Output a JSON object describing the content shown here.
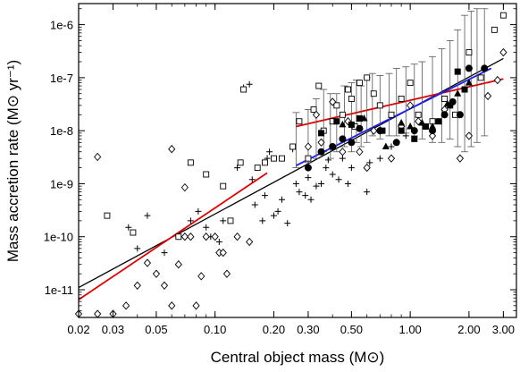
{
  "chart_data": {
    "type": "scatter",
    "title": "",
    "xlabel": "Central object mass (M⊙)",
    "ylabel": "Mass accretion rate (M⊙ yr⁻¹)",
    "x_scale": "log",
    "y_scale": "log",
    "xlim": [
      0.02,
      3.5
    ],
    "ylim": [
      3e-12,
      2.5e-06
    ],
    "x_ticks": [
      {
        "value": 0.02,
        "label": "0.02"
      },
      {
        "value": 0.03,
        "label": "0.03"
      },
      {
        "value": 0.05,
        "label": "0.05"
      },
      {
        "value": 0.1,
        "label": "0.10"
      },
      {
        "value": 0.2,
        "label": "0.20"
      },
      {
        "value": 0.3,
        "label": "0.30"
      },
      {
        "value": 0.5,
        "label": "0.50"
      },
      {
        "value": 1.0,
        "label": "1.00"
      },
      {
        "value": 2.0,
        "label": "2.00"
      },
      {
        "value": 3.0,
        "label": "3.00"
      }
    ],
    "y_ticks": [
      {
        "value": 1e-11,
        "label": "1e-11"
      },
      {
        "value": 1e-10,
        "label": "1e-10"
      },
      {
        "value": 1e-09,
        "label": "1e-9"
      },
      {
        "value": 1e-08,
        "label": "1e-8"
      },
      {
        "value": 1e-07,
        "label": "1e-7"
      },
      {
        "value": 1e-06,
        "label": "1e-6"
      }
    ],
    "grid": false,
    "legend": "none",
    "series": [
      {
        "marker": "plus",
        "points": [
          [
            0.036,
            1.5e-10
          ],
          [
            0.04,
            6e-11
          ],
          [
            0.045,
            2.5e-10
          ],
          [
            0.055,
            5e-11
          ],
          [
            0.065,
            1e-10
          ],
          [
            0.075,
            2e-10
          ],
          [
            0.082,
            3e-10
          ],
          [
            0.09,
            1.5e-10
          ],
          [
            0.095,
            1e-10
          ],
          [
            0.105,
            8e-11
          ],
          [
            0.11,
            2e-10
          ],
          [
            0.13,
            2e-09
          ],
          [
            0.14,
            6.5e-08
          ],
          [
            0.15,
            7.5e-08
          ],
          [
            0.155,
            1.2e-09
          ],
          [
            0.16,
            4e-10
          ],
          [
            0.175,
            2e-10
          ],
          [
            0.18,
            6e-10
          ],
          [
            0.185,
            3e-09
          ],
          [
            0.19,
            4e-09
          ],
          [
            0.2,
            2.5e-10
          ],
          [
            0.21,
            3e-10
          ],
          [
            0.22,
            5e-10
          ],
          [
            0.235,
            1.8e-10
          ],
          [
            0.25,
            4.5e-09
          ],
          [
            0.26,
            1e-09
          ],
          [
            0.27,
            7e-10
          ],
          [
            0.29,
            6e-10
          ],
          [
            0.3,
            1.3e-09
          ],
          [
            0.31,
            5e-10
          ],
          [
            0.33,
            9e-10
          ],
          [
            0.35,
            1e-09
          ],
          [
            0.37,
            2e-09
          ],
          [
            0.38,
            2.8e-09
          ],
          [
            0.4,
            1.5e-09
          ],
          [
            0.43,
            1.2e-09
          ],
          [
            0.45,
            3e-09
          ],
          [
            0.48,
            1e-09
          ],
          [
            0.5,
            2e-09
          ],
          [
            0.55,
            4e-09
          ],
          [
            0.6,
            7e-10
          ],
          [
            0.62,
            2.5e-09
          ],
          [
            0.7,
            3e-09
          ],
          [
            0.8,
            5e-09
          ],
          [
            0.95,
            8e-09
          ]
        ]
      },
      {
        "marker": "open-square",
        "points": [
          [
            0.028,
            2.5e-10
          ],
          [
            0.038,
            1.2e-10
          ],
          [
            0.065,
            1e-10
          ],
          [
            0.075,
            2.5e-09
          ],
          [
            0.09,
            1.5e-09
          ],
          [
            0.11,
            9e-10
          ],
          [
            0.12,
            2e-10
          ],
          [
            0.135,
            2.5e-09
          ],
          [
            0.14,
            6e-08
          ],
          [
            0.165,
            2e-09
          ],
          [
            0.18,
            2.5e-09
          ],
          [
            0.2,
            3e-09
          ],
          [
            0.22,
            3e-09
          ],
          [
            0.25,
            5e-09
          ],
          [
            0.27,
            1.5e-08
          ],
          [
            0.3,
            3e-09
          ],
          [
            0.32,
            2.5e-08
          ],
          [
            0.34,
            7e-08
          ],
          [
            0.36,
            1e-08
          ],
          [
            0.4,
            1.5e-08
          ],
          [
            0.42,
            3e-08
          ],
          [
            0.45,
            2e-08
          ],
          [
            0.48,
            6e-08
          ],
          [
            0.5,
            4e-08
          ],
          [
            0.52,
            1.2e-08
          ],
          [
            0.55,
            8e-08
          ],
          [
            0.6,
            1e-07
          ],
          [
            0.65,
            5e-08
          ],
          [
            0.7,
            3e-08
          ],
          [
            0.8,
            2e-08
          ],
          [
            0.9,
            4e-08
          ],
          [
            1.0,
            8e-08
          ],
          [
            1.1,
            2e-08
          ],
          [
            1.2,
            1.2e-08
          ],
          [
            1.3,
            1.5e-08
          ],
          [
            1.5,
            4e-08
          ],
          [
            1.7,
            2e-08
          ],
          [
            2.0,
            3e-07
          ],
          [
            2.3,
            1e-07
          ],
          [
            2.7,
            8e-07
          ],
          [
            3.0,
            1.5e-06
          ]
        ]
      },
      {
        "marker": "open-diamond",
        "points": [
          [
            0.02,
            3.5e-12
          ],
          [
            0.025,
            3.5e-12
          ],
          [
            0.03,
            3.5e-12
          ],
          [
            0.035,
            5e-12
          ],
          [
            0.04,
            1.2e-11
          ],
          [
            0.045,
            3.2e-11
          ],
          [
            0.05,
            2e-11
          ],
          [
            0.055,
            1.2e-11
          ],
          [
            0.06,
            5e-12
          ],
          [
            0.065,
            3e-11
          ],
          [
            0.07,
            1e-10
          ],
          [
            0.075,
            1e-10
          ],
          [
            0.08,
            5e-12
          ],
          [
            0.085,
            1.8e-11
          ],
          [
            0.09,
            1e-10
          ],
          [
            0.1,
            1e-10
          ],
          [
            0.105,
            5e-11
          ],
          [
            0.11,
            5e-11
          ],
          [
            0.115,
            2e-11
          ],
          [
            0.13,
            1e-10
          ],
          [
            0.15,
            8e-11
          ],
          [
            0.025,
            3.2e-09
          ],
          [
            0.06,
            4.5e-09
          ],
          [
            0.07,
            8.5e-10
          ],
          [
            0.3,
            5e-09
          ],
          [
            0.33,
            2e-08
          ],
          [
            0.35,
            6e-09
          ],
          [
            0.4,
            3.5e-08
          ],
          [
            0.45,
            4e-09
          ],
          [
            0.48,
            1.5e-08
          ],
          [
            0.55,
            4e-09
          ],
          [
            0.6,
            2e-09
          ],
          [
            0.65,
            1e-08
          ],
          [
            0.7,
            1e-08
          ],
          [
            0.8,
            3e-09
          ],
          [
            0.9,
            1.2e-08
          ],
          [
            1.0,
            3e-08
          ],
          [
            1.1,
            1.5e-08
          ],
          [
            1.3,
            8e-09
          ],
          [
            1.5,
            2.5e-08
          ],
          [
            1.8,
            3e-09
          ],
          [
            2.0,
            8e-09
          ],
          [
            2.5,
            4.5e-08
          ],
          [
            2.8,
            9e-08
          ],
          [
            3.0,
            3e-07
          ]
        ]
      },
      {
        "marker": "filled-circle",
        "points": [
          [
            0.3,
            2e-09
          ],
          [
            0.35,
            4e-09
          ],
          [
            0.4,
            5e-09
          ],
          [
            0.45,
            7e-09
          ],
          [
            0.5,
            6e-09
          ],
          [
            0.55,
            1.1e-08
          ],
          [
            0.7,
            1e-08
          ],
          [
            0.85,
            6e-09
          ],
          [
            1.05,
            1e-08
          ],
          [
            1.3,
            1e-08
          ],
          [
            1.5,
            2e-08
          ],
          [
            1.65,
            3.5e-08
          ],
          [
            1.8,
            2e-08
          ],
          [
            2.0,
            1.5e-07
          ],
          [
            2.4,
            1.5e-07
          ]
        ]
      },
      {
        "marker": "filled-square",
        "points": [
          [
            0.35,
            9e-09
          ],
          [
            0.42,
            1.5e-08
          ],
          [
            0.5,
            1.3e-08
          ],
          [
            0.55,
            1.7e-08
          ],
          [
            0.72,
            1e-08
          ],
          [
            0.9,
            1e-08
          ],
          [
            1.05,
            7e-09
          ],
          [
            1.2,
            1.2e-08
          ],
          [
            1.4,
            1.5e-08
          ],
          [
            1.6,
            3e-08
          ],
          [
            1.75,
            1.3e-07
          ],
          [
            1.9,
            6e-08
          ]
        ]
      },
      {
        "marker": "filled-triangle",
        "points": [
          [
            0.45,
            1.3e-08
          ],
          [
            0.58,
            1.7e-08
          ],
          [
            0.75,
            5e-09
          ],
          [
            0.9,
            1.4e-08
          ],
          [
            1.0,
            1.2e-08
          ],
          [
            1.15,
            1.4e-08
          ],
          [
            1.3,
            1.2e-08
          ],
          [
            1.55,
            3.2e-08
          ],
          [
            1.75,
            5e-08
          ],
          [
            2.0,
            8e-08
          ]
        ]
      }
    ],
    "error_bars": [
      [
        0.26,
        7e-09,
        2e-09,
        2.2e-08
      ],
      [
        0.3,
        8e-09,
        2.5e-09,
        2.5e-08
      ],
      [
        0.33,
        1.2e-08,
        3e-09,
        4e-08
      ],
      [
        0.36,
        1.5e-08,
        4e-09,
        6e-08
      ],
      [
        0.39,
        1.2e-08,
        3e-09,
        5e-08
      ],
      [
        0.42,
        1.5e-08,
        4e-09,
        5e-08
      ],
      [
        0.46,
        2e-08,
        5e-09,
        7e-08
      ],
      [
        0.5,
        2e-08,
        4e-09,
        8e-08
      ],
      [
        0.53,
        2.5e-08,
        6e-09,
        9e-08
      ],
      [
        0.56,
        2e-08,
        5e-09,
        7e-08
      ],
      [
        0.6,
        2.5e-08,
        6e-09,
        1e-07
      ],
      [
        0.64,
        3e-08,
        8e-09,
        1.2e-07
      ],
      [
        0.7,
        3e-08,
        7e-09,
        1.1e-07
      ],
      [
        0.78,
        3e-08,
        8e-09,
        1.2e-07
      ],
      [
        0.85,
        3.5e-08,
        8e-09,
        1.5e-07
      ],
      [
        0.95,
        4e-08,
        9e-09,
        1.6e-07
      ],
      [
        1.05,
        4e-08,
        8e-09,
        1.8e-07
      ],
      [
        1.15,
        4e-08,
        7e-09,
        2e-07
      ],
      [
        1.3,
        4e-08,
        6e-09,
        2.5e-07
      ],
      [
        1.45,
        5e-08,
        6e-09,
        3.5e-07
      ],
      [
        1.6,
        5e-08,
        7e-09,
        5e-07
      ],
      [
        1.75,
        6e-08,
        5e-09,
        8e-07
      ],
      [
        1.9,
        8e-08,
        4e-09,
        1.5e-06
      ],
      [
        2.05,
        1e-07,
        5e-09,
        1.8e-06
      ],
      [
        2.2,
        1e-07,
        6e-09,
        2e-06
      ],
      [
        2.4,
        1.2e-07,
        8e-09,
        2e-06
      ]
    ],
    "fit_lines": [
      {
        "color": "#000000",
        "from": [
          0.02,
          1.1e-11
        ],
        "to": [
          3.0,
          2.3e-07
        ]
      },
      {
        "color": "#e00000",
        "from": [
          0.02,
          6.5e-12
        ],
        "to": [
          0.185,
          1.6e-09
        ]
      },
      {
        "color": "#e00000",
        "from": [
          0.26,
          1.2e-08
        ],
        "to": [
          3.0,
          9.5e-08
        ]
      },
      {
        "color": "#1a1aff",
        "from": [
          0.26,
          2.2e-09
        ],
        "to": [
          2.6,
          1.5e-07
        ]
      }
    ]
  }
}
